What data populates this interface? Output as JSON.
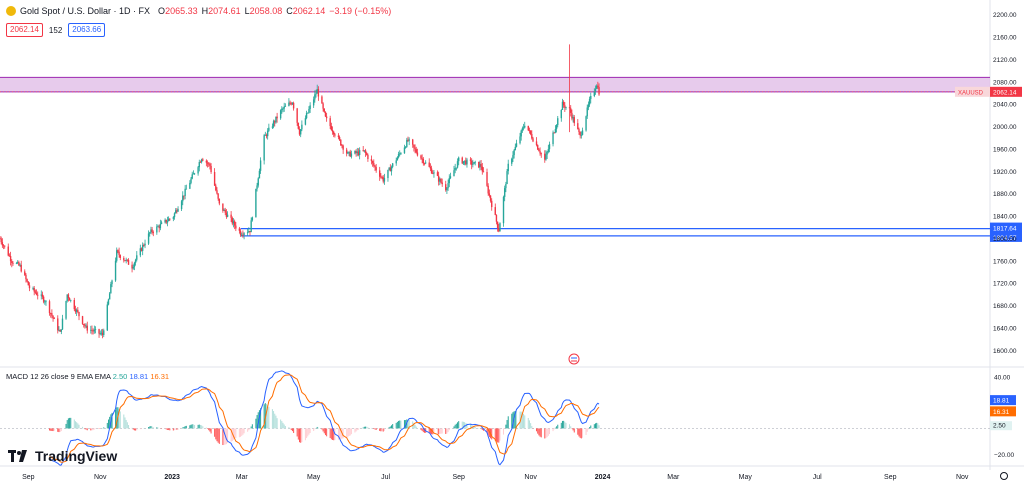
{
  "header": {
    "symbol": "Gold Spot / U.S. Dollar · 1D · FX",
    "open_label": "O",
    "open": "2065.33",
    "high_label": "H",
    "high": "2074.61",
    "low_label": "L",
    "low": "2058.08",
    "close_label": "C",
    "close": "2062.14",
    "change": "−3.19 (−0.15%)",
    "bid": "2062.14",
    "spread": "152",
    "ask": "2063.66"
  },
  "macd_label": {
    "title": "MACD 12 26 close 9 EMA EMA",
    "hist": "2.50",
    "macd": "18.81",
    "signal": "16.31"
  },
  "branding": "TradingView",
  "colors": {
    "up": "#26a69a",
    "down": "#f23645",
    "macd": "#2962ff",
    "signal": "#ff6d00",
    "zone": "#9c27b0",
    "support": "#2962ff"
  },
  "chart_data": {
    "type": "candlestick",
    "symbol": "XAUUSD",
    "price_axis": {
      "ylim": [
        1572,
        2212
      ],
      "ticks": [
        1600,
        1640,
        1680,
        1720,
        1760,
        1800,
        1840,
        1880,
        1920,
        1960,
        2000,
        2040,
        2080,
        2120,
        2160,
        2200
      ],
      "tick_labels": [
        "1600.00",
        "1640.00",
        "1680.00",
        "1720.00",
        "1760.00",
        "1800.00",
        "1840.00",
        "1880.00",
        "1920.00",
        "1960.00",
        "2000.00",
        "2040.00",
        "2080.00",
        "2120.00",
        "2160.00",
        "2200.00"
      ]
    },
    "x_axis": {
      "labels": [
        "Sep",
        "Nov",
        "2023",
        "Mar",
        "May",
        "Jul",
        "Sep",
        "Nov",
        "2024",
        "Mar",
        "May",
        "Jul",
        "Sep",
        "Nov"
      ],
      "label_dates": [
        "2022-09-01",
        "2022-11-01",
        "2023-01-01",
        "2023-03-01",
        "2023-05-01",
        "2023-07-01",
        "2023-09-01",
        "2023-11-01",
        "2024-01-01",
        "2024-03-01",
        "2024-05-01",
        "2024-07-01",
        "2024-09-01",
        "2024-11-01"
      ]
    },
    "anchor_prices": [
      [
        "2022-08-08",
        1800
      ],
      [
        "2022-08-18",
        1760
      ],
      [
        "2022-08-25",
        1750
      ],
      [
        "2022-09-02",
        1712
      ],
      [
        "2022-09-15",
        1690
      ],
      [
        "2022-09-28",
        1630
      ],
      [
        "2022-10-04",
        1700
      ],
      [
        "2022-10-20",
        1640
      ],
      [
        "2022-11-03",
        1628
      ],
      [
        "2022-11-15",
        1775
      ],
      [
        "2022-11-28",
        1750
      ],
      [
        "2022-12-13",
        1810
      ],
      [
        "2023-01-02",
        1840
      ],
      [
        "2023-01-26",
        1945
      ],
      [
        "2023-02-02",
        1930
      ],
      [
        "2023-02-10",
        1860
      ],
      [
        "2023-02-28",
        1810
      ],
      [
        "2023-03-08",
        1815
      ],
      [
        "2023-03-20",
        1980
      ],
      [
        "2023-04-04",
        2030
      ],
      [
        "2023-04-13",
        2045
      ],
      [
        "2023-04-19",
        1990
      ],
      [
        "2023-05-04",
        2065
      ],
      [
        "2023-05-11",
        2015
      ],
      [
        "2023-05-30",
        1950
      ],
      [
        "2023-06-13",
        1955
      ],
      [
        "2023-06-29",
        1905
      ],
      [
        "2023-07-20",
        1975
      ],
      [
        "2023-07-27",
        1955
      ],
      [
        "2023-08-21",
        1890
      ],
      [
        "2023-09-01",
        1940
      ],
      [
        "2023-09-20",
        1930
      ],
      [
        "2023-10-05",
        1815
      ],
      [
        "2023-10-13",
        1930
      ],
      [
        "2023-10-27",
        2005
      ],
      [
        "2023-11-13",
        1940
      ],
      [
        "2023-11-28",
        2040
      ],
      [
        "2023-12-04",
        2030
      ],
      [
        "2023-12-13",
        1982
      ],
      [
        "2023-12-21",
        2045
      ],
      [
        "2023-12-27",
        2077
      ],
      [
        "2023-12-29",
        2062.14
      ]
    ],
    "spike": {
      "date": "2023-12-04",
      "high": 2147,
      "low": 1990
    },
    "resistance_zone": {
      "from": 2062,
      "to": 2088
    },
    "support_lines": [
      {
        "price": 1817.64,
        "label": "1817.64",
        "from": "2023-02-28"
      },
      {
        "price": 1804.57,
        "label": "1804.57",
        "from": "2023-02-28"
      }
    ],
    "last_price": {
      "symbol_label": "XAUUSD",
      "value": 2062.14,
      "label": "2062.14"
    },
    "macd": {
      "fast": 12,
      "slow": 26,
      "signal_length": 9,
      "ylim": [
        -26,
        46
      ],
      "ticks": [
        -20,
        2.5,
        40
      ],
      "tick_labels": [
        "−20.00",
        "2.50",
        "40.00"
      ],
      "last": {
        "macd": 18.81,
        "signal": 16.31,
        "histogram": 2.5
      }
    }
  }
}
